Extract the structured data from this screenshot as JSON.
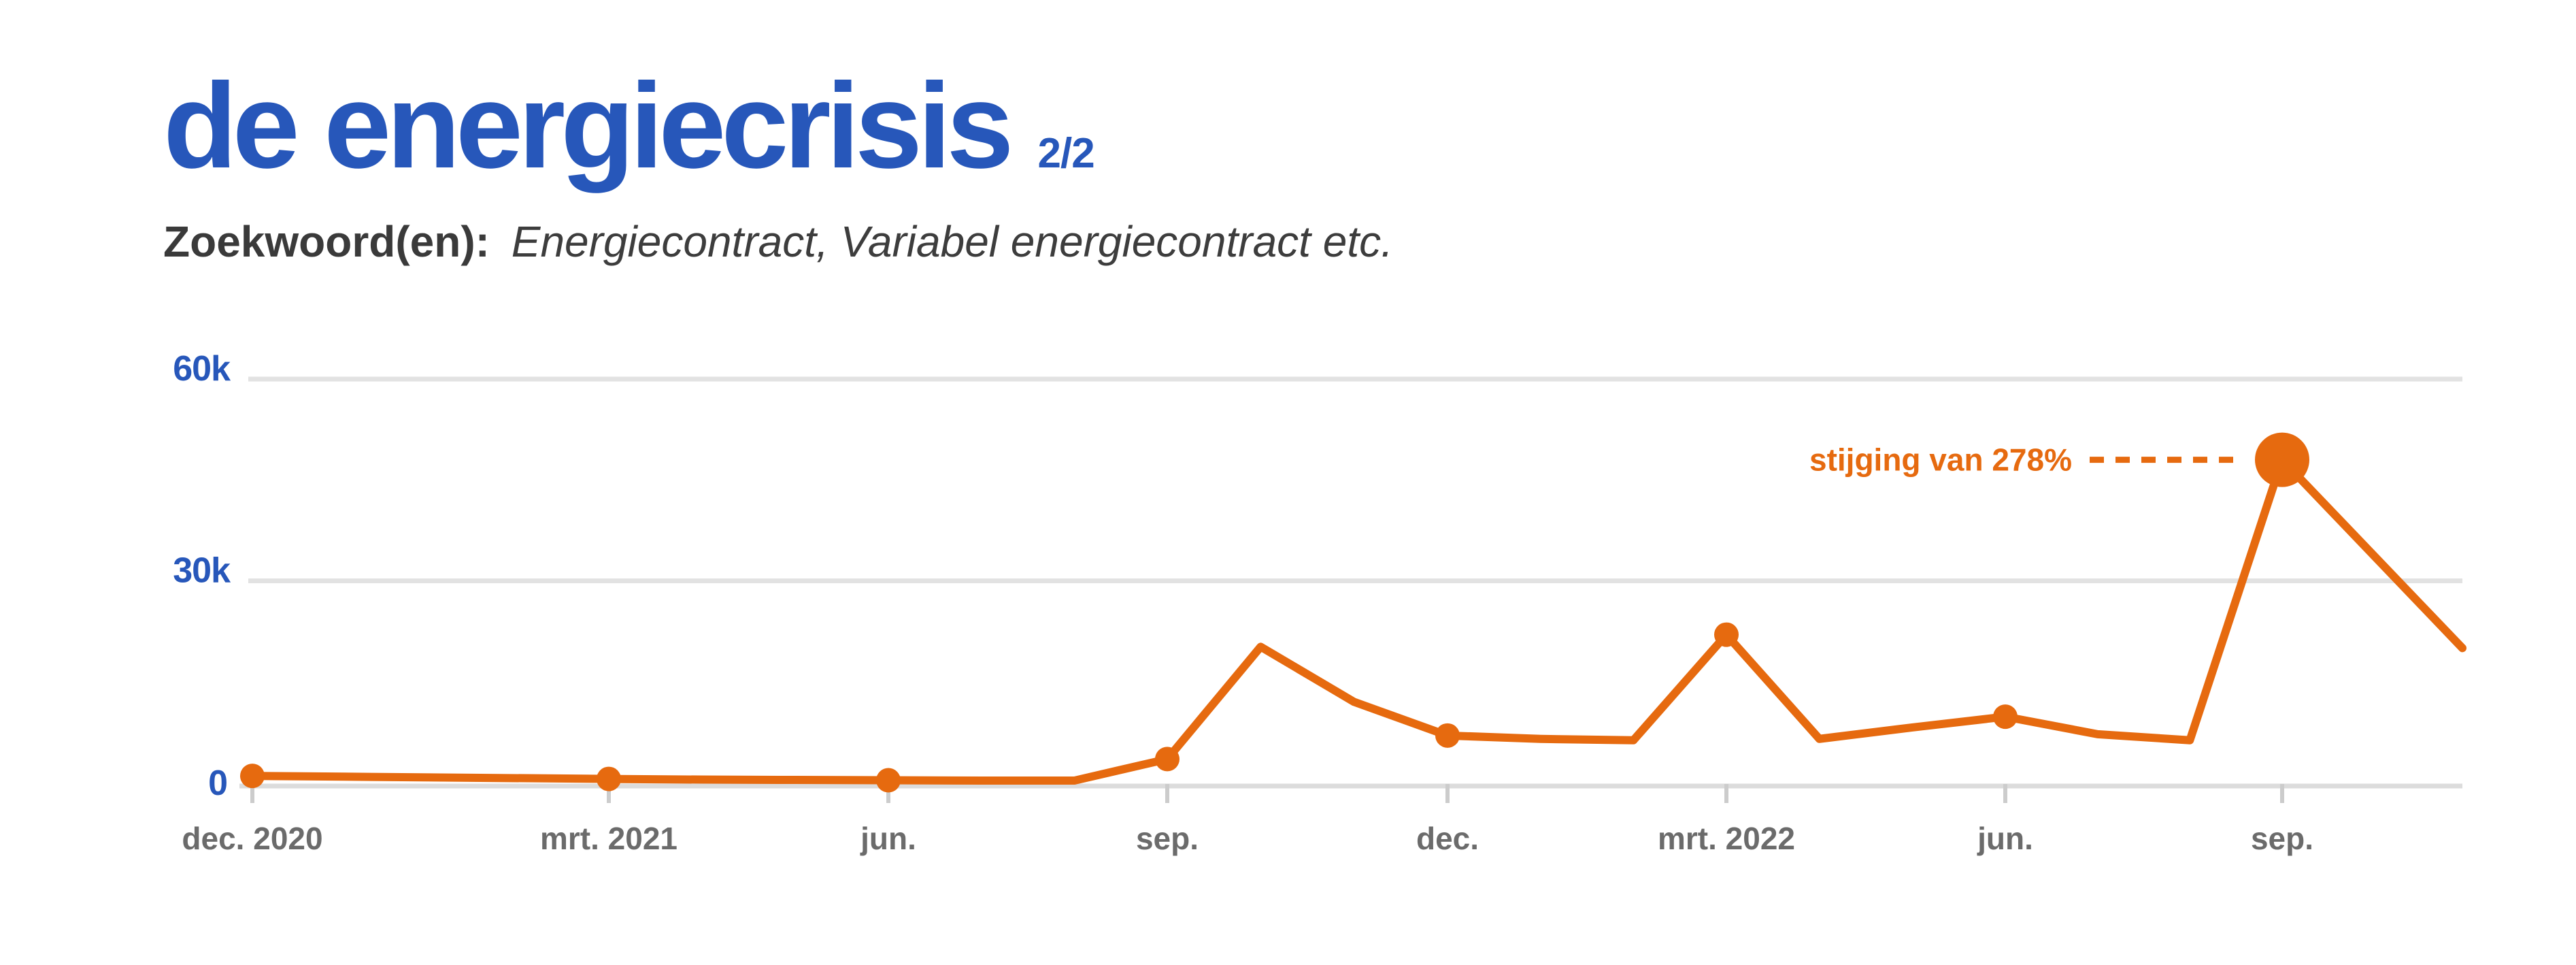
{
  "header": {
    "title": "de energiecrisis",
    "page_indicator": "2/2",
    "subtitle_label": "Zoekwoord(en):",
    "subtitle_text": "Energiecontract, Variabel energiecontract etc."
  },
  "colors": {
    "brand_blue": "#2757BA",
    "series_orange": "#E66A0F",
    "subtitle_dark": "#3A3A3A",
    "xlabel_grey": "#6B6B6B",
    "gridline_grey": "#E2E2E2",
    "axisline_grey": "#DCDCDC",
    "tick_grey": "#CCCCCC",
    "background": "#FFFFFF"
  },
  "chart_data": {
    "type": "line",
    "title": "",
    "xlabel": "",
    "ylabel": "",
    "unit": "searches (thousands)",
    "ylim": [
      0,
      60
    ],
    "grid": "horizontal",
    "legend": "none",
    "y_ticks": [
      {
        "label": "60k",
        "value": 60
      },
      {
        "label": "30k",
        "value": 30
      },
      {
        "label": "0",
        "value": 0
      }
    ],
    "x_tick_labels": [
      "dec. 2020",
      "mrt. 2021",
      "jun.",
      "sep.",
      "dec.",
      "mrt. 2022",
      "jun.",
      "sep."
    ],
    "x_tick_point_indices": [
      0,
      3,
      6,
      9,
      12,
      15,
      18,
      21
    ],
    "points": [
      {
        "month": "dec. 2020",
        "value_k": 1.0,
        "marker": "dot"
      },
      {
        "month": "jan. 2021",
        "value_k": 0.85
      },
      {
        "month": "feb. 2021",
        "value_k": 0.7
      },
      {
        "month": "mrt. 2021",
        "value_k": 0.55,
        "marker": "dot"
      },
      {
        "month": "apr. 2021",
        "value_k": 0.45
      },
      {
        "month": "mei 2021",
        "value_k": 0.4
      },
      {
        "month": "jun. 2021",
        "value_k": 0.35,
        "marker": "dot"
      },
      {
        "month": "jul. 2021",
        "value_k": 0.3
      },
      {
        "month": "aug. 2021",
        "value_k": 0.3
      },
      {
        "month": "sep. 2021",
        "value_k": 3.5,
        "marker": "dot"
      },
      {
        "month": "okt. 2021",
        "value_k": 20.2
      },
      {
        "month": "nov. 2021",
        "value_k": 12.0
      },
      {
        "month": "dec. 2021",
        "value_k": 7.0,
        "marker": "dot"
      },
      {
        "month": "jan. 2022",
        "value_k": 6.5
      },
      {
        "month": "feb. 2022",
        "value_k": 6.3
      },
      {
        "month": "mrt. 2022",
        "value_k": 22.0,
        "marker": "dot"
      },
      {
        "month": "apr. 2022",
        "value_k": 6.5
      },
      {
        "month": "mei 2022",
        "value_k": 8.2
      },
      {
        "month": "jun. 2022",
        "value_k": 9.8,
        "marker": "dot"
      },
      {
        "month": "jul. 2022",
        "value_k": 7.2
      },
      {
        "month": "aug. 2022",
        "value_k": 6.3
      },
      {
        "month": "sep. 2022",
        "value_k": 48.0,
        "marker": "big"
      },
      {
        "month": "okt. 2022",
        "value_k": 20.0
      }
    ],
    "annotation": {
      "text": "stijging van 278%",
      "target_month": "sep. 2022"
    }
  }
}
